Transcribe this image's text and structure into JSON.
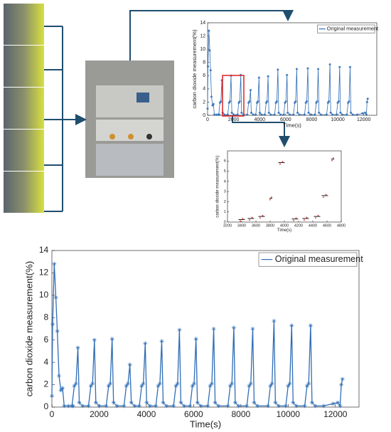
{
  "chart_data": [
    {
      "type": "line",
      "xlabel": "Time(s)",
      "ylabel": "carbon dioxide measurement(%)",
      "xlim": [
        0,
        13000
      ],
      "xticks": [
        0,
        2000,
        4000,
        6000,
        8000,
        10000,
        12000
      ],
      "ylim": [
        0,
        14
      ],
      "yticks": [
        0,
        2,
        4,
        6,
        8,
        10,
        12,
        14
      ],
      "legend": "upper right",
      "series": [
        {
          "name": "Original measurement",
          "color": "#2f6db5",
          "x": [
            0,
            30,
            100,
            170,
            230,
            300,
            380,
            450,
            520,
            700,
            900,
            850,
            950,
            1020,
            1100,
            1160,
            1300,
            1550,
            1650,
            1720,
            1800,
            1860,
            2000,
            2300,
            2400,
            2470,
            2550,
            2610,
            2750,
            3050,
            3150,
            3220,
            3300,
            3360,
            3500,
            3700,
            3800,
            3870,
            3950,
            4010,
            4150,
            4400,
            4500,
            4570,
            4650,
            4710,
            4850,
            5150,
            5250,
            5320,
            5400,
            5460,
            5600,
            5850,
            5950,
            6020,
            6100,
            6160,
            6300,
            6600,
            6700,
            6770,
            6850,
            6910,
            7050,
            7450,
            7550,
            7620,
            7700,
            7760,
            7900,
            8250,
            8350,
            8420,
            8500,
            8560,
            8700,
            9150,
            9250,
            9320,
            9400,
            9460,
            9600,
            9900,
            10000,
            10070,
            10150,
            10210,
            10350,
            10700,
            10800,
            10870,
            10950,
            11010,
            11150,
            11500,
            11900,
            12100,
            12200,
            12250,
            12300
          ],
          "values": [
            1.0,
            7.4,
            12.8,
            9.8,
            6.8,
            2.8,
            1.5,
            1.7,
            0.1,
            0.1,
            0.1,
            0.1,
            1.9,
            2.1,
            5.3,
            0.4,
            0.1,
            0.1,
            1.9,
            2.1,
            6.0,
            0.4,
            0.1,
            0.1,
            1.9,
            2.1,
            6.1,
            0.4,
            0.1,
            0.1,
            1.9,
            2.1,
            3.8,
            0.4,
            0.1,
            0.1,
            1.9,
            2.1,
            5.7,
            0.4,
            0.1,
            0.1,
            1.9,
            2.1,
            5.9,
            0.4,
            0.1,
            0.1,
            1.9,
            2.1,
            6.9,
            0.4,
            0.1,
            0.1,
            1.9,
            2.1,
            6.1,
            0.4,
            0.1,
            0.1,
            1.9,
            2.1,
            7.0,
            0.4,
            0.1,
            0.1,
            1.9,
            2.1,
            7.1,
            0.4,
            0.1,
            0.1,
            1.9,
            2.1,
            7.0,
            0.4,
            0.1,
            0.1,
            1.9,
            2.1,
            7.7,
            0.4,
            0.1,
            0.1,
            1.9,
            2.1,
            7.3,
            0.4,
            0.1,
            0.1,
            1.9,
            2.1,
            7.3,
            0.4,
            0.1,
            0.1,
            0.3,
            0.4,
            0.1,
            2.0,
            2.5
          ]
        }
      ]
    },
    {
      "type": "scatter",
      "xlabel": "Time(s)",
      "ylabel": "carbon dioxide measurement(%)",
      "xlim": [
        3200,
        4800
      ],
      "xticks": [
        3200,
        3400,
        3600,
        3800,
        4000,
        4200,
        4400,
        4600,
        4800
      ],
      "ylim": [
        0,
        7
      ],
      "yticks": [
        0,
        1,
        2,
        3,
        4,
        5,
        6
      ],
      "points": {
        "color": "#d62728",
        "x": [
          3380,
          3415,
          3510,
          3545,
          3660,
          3695,
          3800,
          3820,
          3940,
          3975,
          4130,
          4165,
          4280,
          4315,
          4440,
          4475,
          4550,
          4585,
          4670,
          4690
        ],
        "values": [
          0.1,
          0.35,
          0.2,
          0.45,
          0.4,
          0.65,
          2.2,
          2.45,
          5.7,
          5.95,
          0.15,
          0.4,
          0.2,
          0.45,
          0.4,
          0.65,
          2.45,
          2.7,
          6.05,
          6.3
        ]
      },
      "means": {
        "color": "#000000",
        "x_start": [
          3355,
          3485,
          3635,
          3790,
          3915,
          4105,
          4255,
          4415,
          4525,
          4660
        ],
        "x_end": [
          3445,
          3575,
          3725,
          3830,
          4005,
          4195,
          4345,
          4505,
          4615,
          4700
        ],
        "values": [
          0.25,
          0.35,
          0.55,
          2.35,
          5.85,
          0.3,
          0.35,
          0.55,
          2.6,
          6.2
        ]
      }
    }
  ]
}
